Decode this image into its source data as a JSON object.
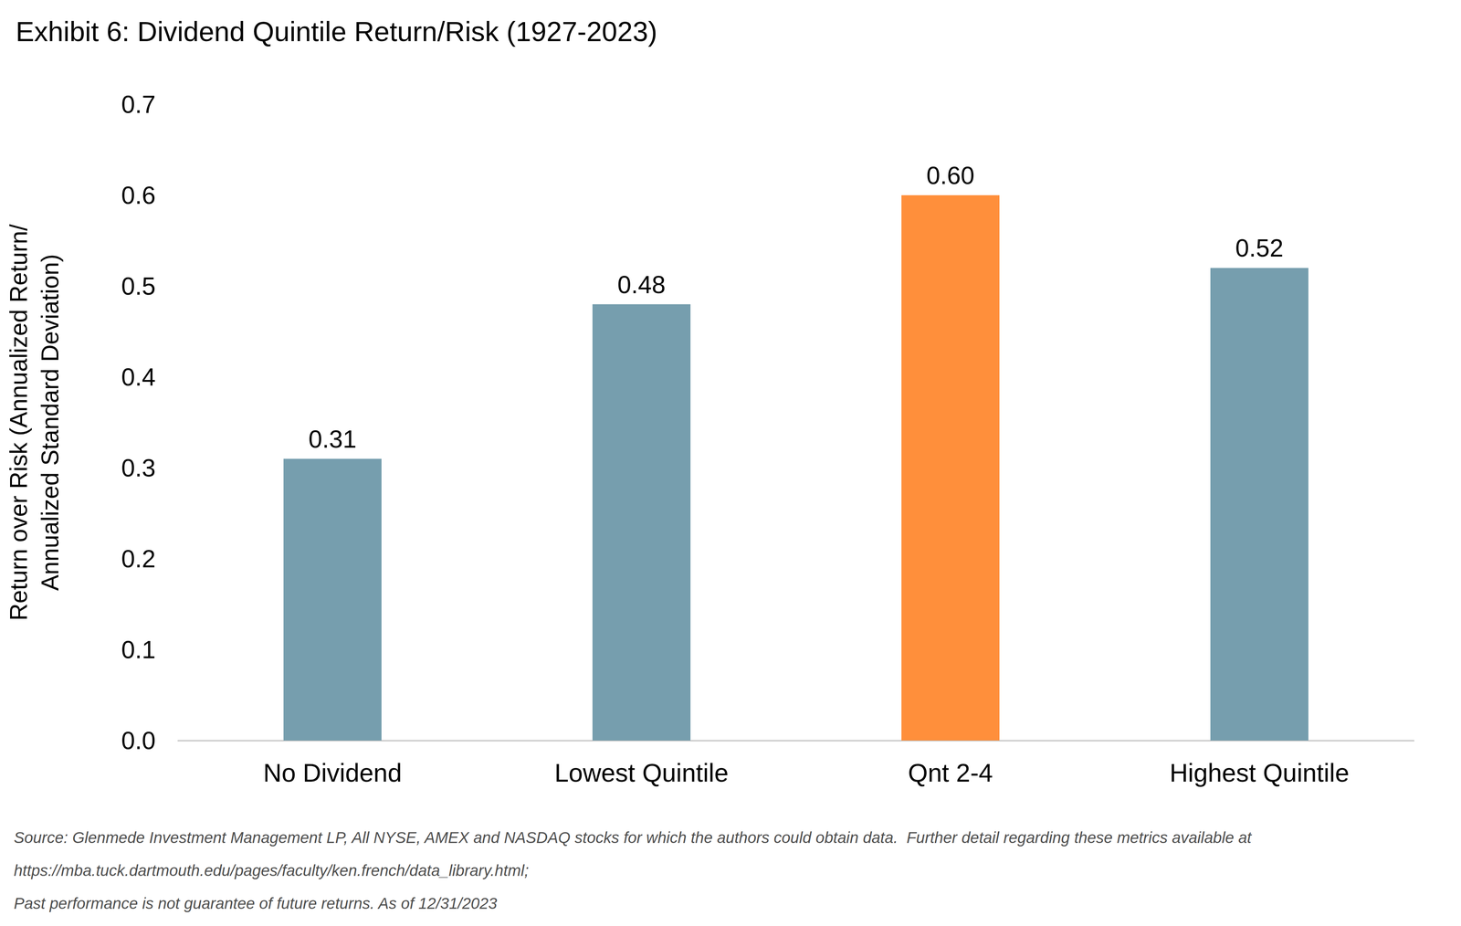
{
  "chart_data": {
    "type": "bar",
    "title": "Exhibit 6: Dividend Quintile Return/Risk (1927-2023)",
    "ylabel": "Return over Risk (Annualized Return/\nAnnualized Standard Deviation)",
    "categories": [
      "No Dividend",
      "Lowest Quintile",
      "Qnt 2-4",
      "Highest Quintile"
    ],
    "values": [
      0.31,
      0.48,
      0.6,
      0.52
    ],
    "colors": [
      "#769eae",
      "#769eae",
      "#ff8f3b",
      "#769eae"
    ],
    "ylim": [
      0,
      0.7
    ],
    "yticks": [
      {
        "value": 0,
        "label": "0.0"
      },
      0.1,
      0.2,
      0.3,
      0.4,
      0.5,
      0.6,
      0.7
    ],
    "value_labels": [
      "0.31",
      "0.48",
      "0.60",
      "0.52"
    ],
    "data_labels": true,
    "grid": false,
    "annotations": [
      "Source: Glenmede Investment Management LP, All NYSE, AMEX and NASDAQ stocks for which the authors could obtain data.  Further detail regarding these metrics available at",
      "https://mba.tuck.dartmouth.edu/pages/faculty/ken.french/data_library.html;",
      "Past performance is not guarantee of future returns. As of 12/31/2023"
    ]
  }
}
